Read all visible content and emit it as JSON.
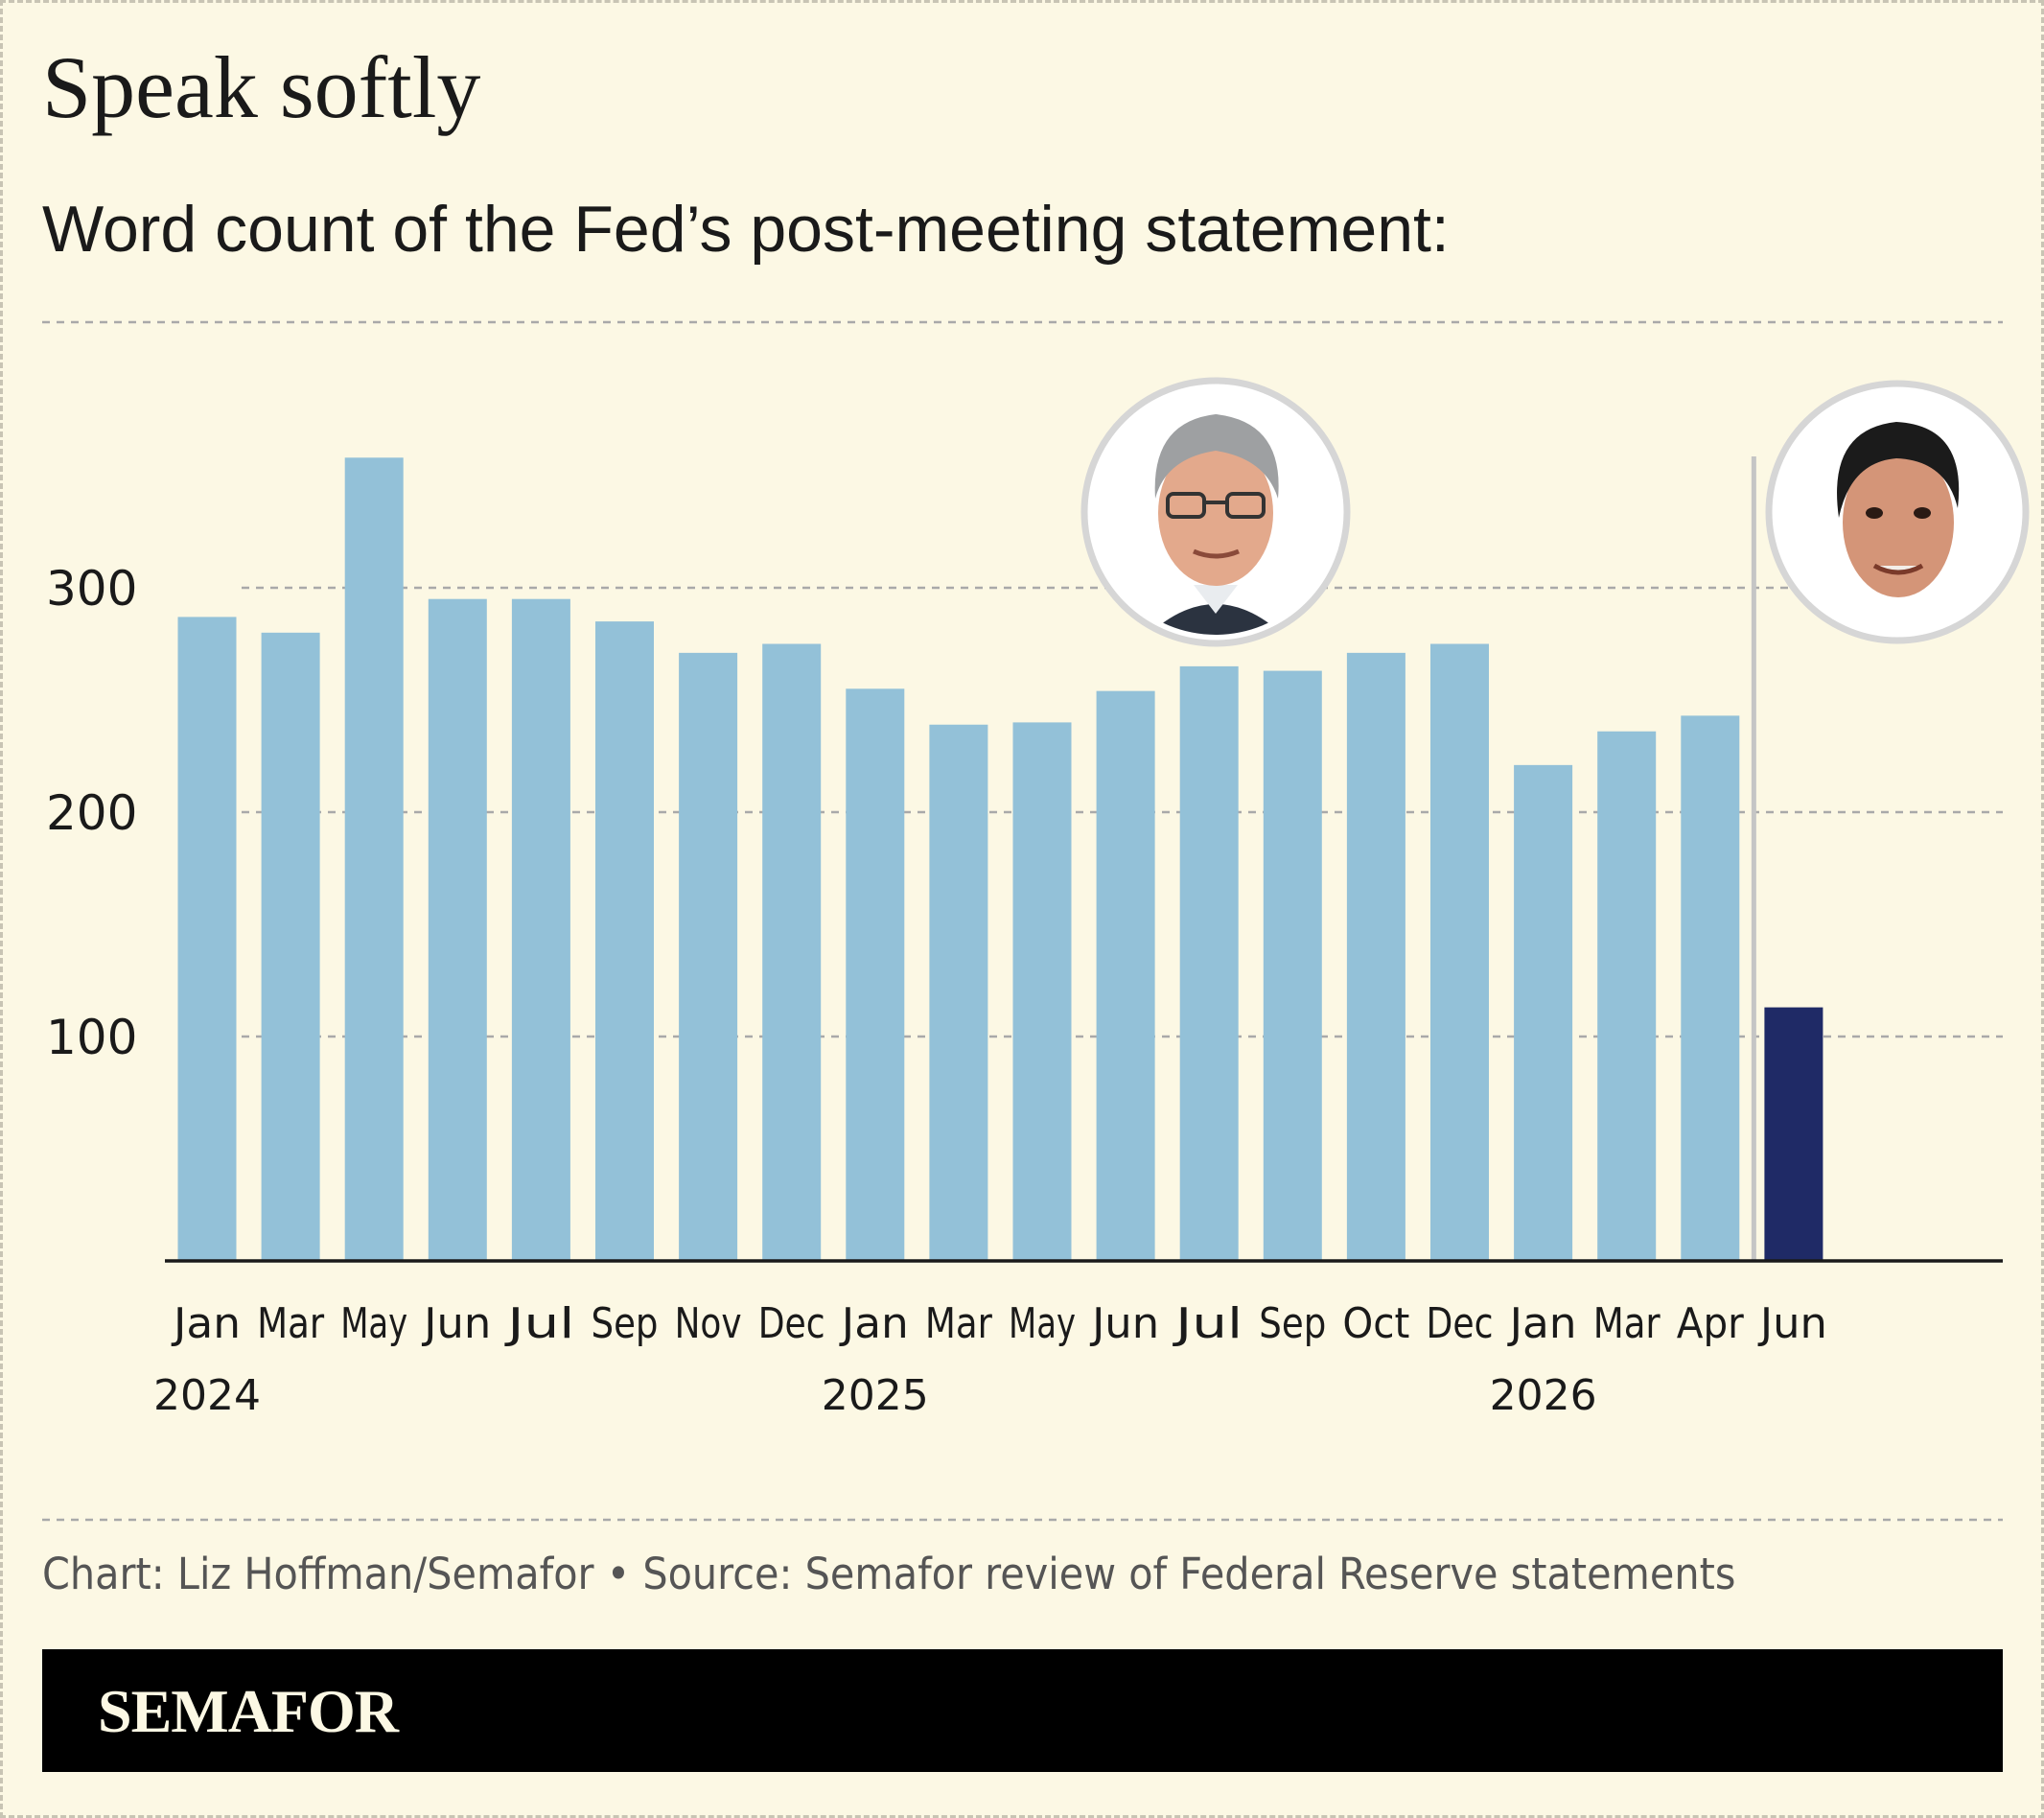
{
  "title": "Speak softly",
  "subtitle": "Word count of the Fed’s post-meeting statement:",
  "credit": "Chart: Liz Hoffman/Semafor • Source: Semafor review of Federal Reserve statements",
  "brand": "SEMAFOR",
  "colors": {
    "background": "#fcf8e4",
    "bar_default": "#93c1d8",
    "bar_highlight": "#1f2a66",
    "axis": "#1a1a1a",
    "grid": "#a9a9a9",
    "divider": "#c5c5c5"
  },
  "icons": [
    "portrait-previous-chair",
    "portrait-new-chair"
  ],
  "chart_data": {
    "type": "bar",
    "categories": [
      "Jan",
      "Mar",
      "May",
      "Jun",
      "Jul",
      "Sep",
      "Nov",
      "Dec",
      "Jan",
      "Mar",
      "May",
      "Jun",
      "Jul",
      "Sep",
      "Oct",
      "Dec",
      "Jan",
      "Mar",
      "Apr",
      "Jun"
    ],
    "year_labels": [
      {
        "index": 0,
        "label": "2024"
      },
      {
        "index": 8,
        "label": "2025"
      },
      {
        "index": 16,
        "label": "2026"
      }
    ],
    "values": [
      287,
      280,
      358,
      295,
      295,
      285,
      271,
      275,
      255,
      239,
      240,
      254,
      265,
      263,
      271,
      275,
      221,
      236,
      243,
      113
    ],
    "highlight_index": 19,
    "title": "Speak softly",
    "subtitle": "Word count of the Fed’s post-meeting statement:",
    "xlabel": "",
    "ylabel": "",
    "ylim": [
      0,
      415
    ],
    "yticks": [
      100,
      200,
      300
    ],
    "grid": true,
    "divider_between": [
      18,
      19
    ]
  }
}
